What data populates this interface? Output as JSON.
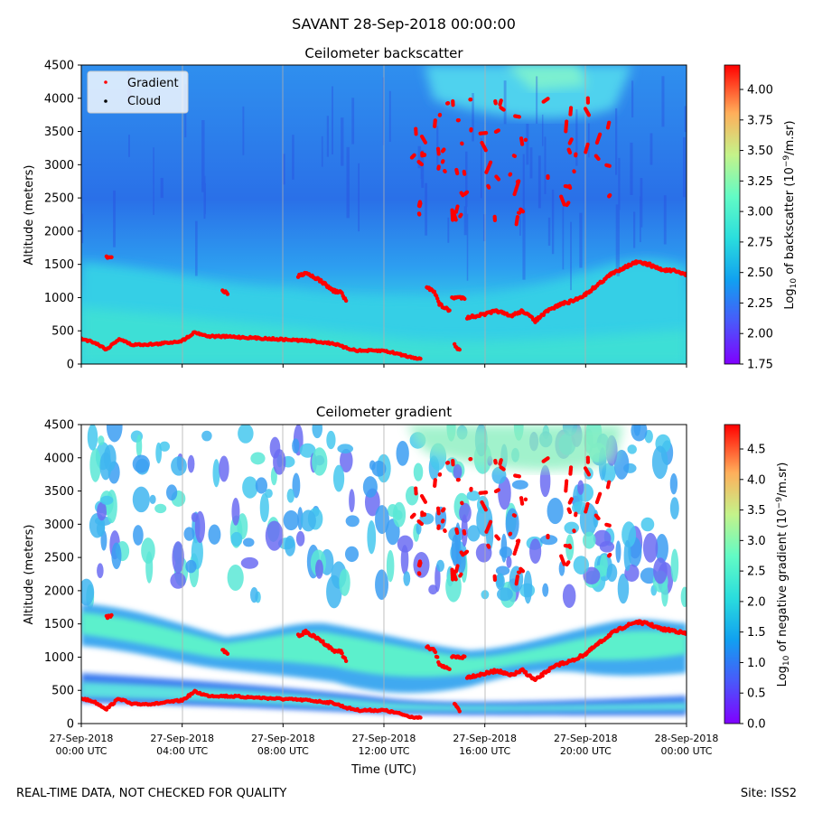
{
  "figure": {
    "suptitle": "SAVANT 28-Sep-2018 00:00:00",
    "footer_left": "REAL-TIME DATA, NOT CHECKED FOR QUALITY",
    "footer_right": "Site: ISS2"
  },
  "chart_data": [
    {
      "type": "heatmap",
      "title": "Ceilometer backscatter",
      "xlabel": "",
      "ylabel": "Altitude (meters)",
      "ylim": [
        0,
        4500
      ],
      "y_ticks": [
        "0",
        "500",
        "1000",
        "1500",
        "2000",
        "2500",
        "3000",
        "3500",
        "4000",
        "4500"
      ],
      "x_ticks": [],
      "colorbar": {
        "label_main": "Log",
        "label_sub": "10",
        "label_rest": " of backscatter (10",
        "label_sup": "−9",
        "label_end": "/m.sr)",
        "range": [
          1.75,
          4.2
        ],
        "ticks": [
          "1.75",
          "2.00",
          "2.25",
          "2.50",
          "2.75",
          "3.00",
          "3.25",
          "3.50",
          "3.75",
          "4.00"
        ],
        "colormap": "rainbow"
      },
      "legend": {
        "placement": "top-left",
        "entries": [
          {
            "label": "Gradient",
            "color": "#ff0000"
          },
          {
            "label": "Cloud",
            "color": "#000000"
          }
        ]
      },
      "gradient_series": {
        "name": "Gradient",
        "color": "#ff0000",
        "x_hours": [
          0,
          0.5,
          1,
          1.5,
          2,
          3,
          4,
          4.5,
          5,
          6,
          7,
          8,
          9,
          10,
          10.5,
          11,
          12,
          12.5,
          13,
          13.5
        ],
        "altitude_m": [
          380,
          330,
          220,
          380,
          290,
          300,
          350,
          480,
          420,
          410,
          390,
          370,
          350,
          310,
          240,
          200,
          200,
          160,
          110,
          80
        ]
      },
      "cloud_series": {
        "name": "Cloud",
        "color": "#000000",
        "x_hours": [],
        "altitude_m": []
      }
    },
    {
      "type": "heatmap",
      "title": "Ceilometer gradient",
      "xlabel": "Time (UTC)",
      "ylabel": "Altitude (meters)",
      "ylim": [
        0,
        4500
      ],
      "y_ticks": [
        "0",
        "500",
        "1000",
        "1500",
        "2000",
        "2500",
        "3000",
        "3500",
        "4000",
        "4500"
      ],
      "x_ticks": [
        {
          "date": "27-Sep-2018",
          "time": "00:00 UTC"
        },
        {
          "date": "27-Sep-2018",
          "time": "04:00 UTC"
        },
        {
          "date": "27-Sep-2018",
          "time": "08:00 UTC"
        },
        {
          "date": "27-Sep-2018",
          "time": "12:00 UTC"
        },
        {
          "date": "27-Sep-2018",
          "time": "16:00 UTC"
        },
        {
          "date": "27-Sep-2018",
          "time": "20:00 UTC"
        },
        {
          "date": "28-Sep-2018",
          "time": "00:00 UTC"
        }
      ],
      "colorbar": {
        "label_main": "Log",
        "label_sub": "10",
        "label_rest": " of negative gradient (10",
        "label_sup": "−9",
        "label_end": "/m.sr)",
        "range": [
          0,
          4.9
        ],
        "ticks": [
          "0.0",
          "0.5",
          "1.0",
          "1.5",
          "2.0",
          "2.5",
          "3.0",
          "3.5",
          "4.0",
          "4.5"
        ],
        "colormap": "rainbow"
      },
      "gradient_series": {
        "name": "Gradient",
        "color": "#ff0000",
        "x_hours": [
          0,
          0.5,
          1,
          1.5,
          2,
          3,
          4,
          4.5,
          5,
          6,
          7,
          8,
          9,
          10,
          10.5,
          11,
          12,
          12.5,
          13,
          13.5
        ],
        "altitude_m": [
          380,
          330,
          220,
          380,
          290,
          300,
          350,
          480,
          420,
          410,
          390,
          370,
          350,
          310,
          240,
          200,
          200,
          160,
          110,
          80
        ]
      }
    }
  ]
}
